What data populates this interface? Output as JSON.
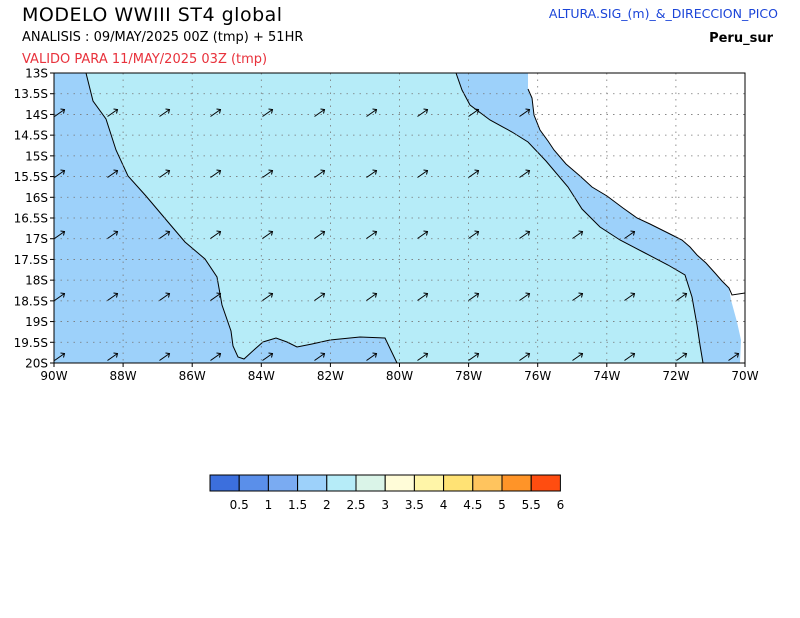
{
  "header": {
    "model_title": "MODELO  WWIII  ST4  global",
    "analysis": "ANALISIS : 09/MAY/2025 00Z  (tmp) + 51HR",
    "valid": "VALIDO PARA  11/MAY/2025 03Z  (tmp)",
    "variable": "ALTURA.SIG_(m)_&_DIRECCION_PICO",
    "region": "Peru_sur"
  },
  "map": {
    "lat_labels": [
      "13S",
      "13.5S",
      "14S",
      "14.5S",
      "15S",
      "15.5S",
      "16S",
      "16.5S",
      "17S",
      "17.5S",
      "18S",
      "18.5S",
      "19S",
      "19.5S",
      "20S"
    ],
    "lon_labels": [
      "90W",
      "88W",
      "86W",
      "84W",
      "82W",
      "80W",
      "78W",
      "76W",
      "74W",
      "72W",
      "70W"
    ],
    "lat_range": [
      -20,
      -13
    ],
    "lon_range": [
      -90,
      -70
    ],
    "field_classes": {
      "offshore_low": "1.5-2",
      "central": "2-2.5",
      "coastal_band": "1.5-2",
      "land": "no data"
    },
    "peak_direction": "SW to NE"
  },
  "colorbar": {
    "colors": [
      "#3c6fdd",
      "#5a8fea",
      "#7aabf2",
      "#9dd1fa",
      "#b6ecf8",
      "#daf4e8",
      "#fffcd8",
      "#fff5a8",
      "#ffe274",
      "#ffc45e",
      "#ff9428",
      "#ff4d10"
    ],
    "labels": [
      "0.5",
      "1",
      "1.5",
      "2",
      "2.5",
      "3",
      "3.5",
      "4",
      "4.5",
      "5",
      "5.5",
      "6"
    ]
  }
}
